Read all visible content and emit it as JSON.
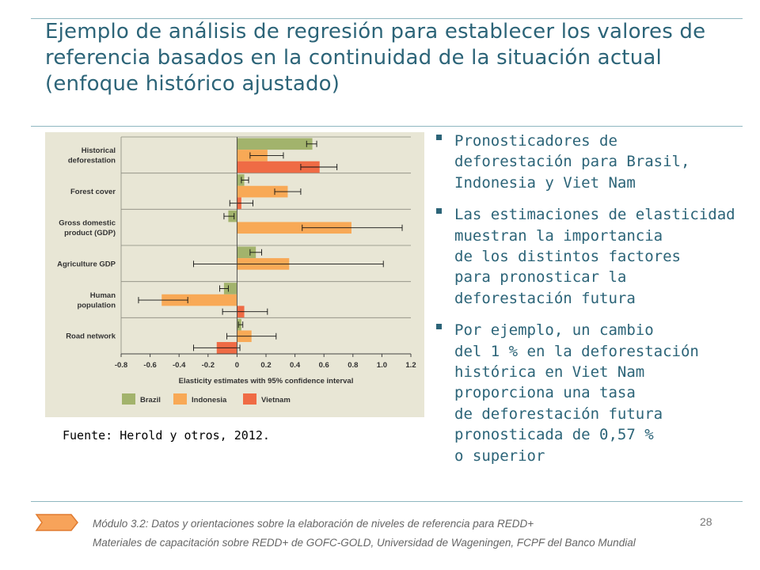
{
  "slide": {
    "title": "Ejemplo de análisis de regresión para establecer los valores de referencia basados en la continuidad de la situación actual (enfoque histórico ajustado)",
    "source": "Fuente: Herold y otros, 2012.",
    "bullets": [
      "Pronosticadores de\ndeforestación para Brasil,\nIndonesia y Viet Nam",
      "Las estimaciones de elasticidad\nmuestran la importancia\nde los distintos factores\npara pronosticar la\ndeforestación futura",
      "Por ejemplo, un cambio\ndel 1 % en la deforestación\nhistórica en Viet Nam\nproporciona una tasa\nde deforestación futura\npronosticada de 0,57 %\no superior"
    ],
    "page_number": "28",
    "footer_line1": "Módulo 3.2: Datos y orientaciones sobre la elaboración de niveles de referencia para REDD+",
    "footer_line2": "Materiales de capacitación sobre REDD+ de GOFC-GOLD,  Universidad de Wageningen, FCPF del Banco Mundial"
  },
  "colors": {
    "title": "#2c6478",
    "chart_bg": "#e8e6d5",
    "Brazil": "#a2b36c",
    "Indonesia": "#f8a956",
    "Vietnam": "#ef6b45"
  },
  "chart_data": {
    "type": "bar",
    "orientation": "horizontal",
    "xlabel": "Elasticity estimates with 95% confidence interval",
    "xlim": [
      -0.8,
      1.2
    ],
    "xticks": [
      "-0.8",
      "-0.6",
      "-0.4",
      "-0.2",
      "0",
      "0.2",
      "0.4",
      "0.6",
      "0.8",
      "1.0",
      "1.2"
    ],
    "legend_position": "bottom",
    "categories": [
      [
        "Historical",
        "deforestation"
      ],
      [
        "Forest cover"
      ],
      [
        "Gross domestic",
        "product (GDP)"
      ],
      [
        "Agriculture GDP"
      ],
      [
        "Human",
        "population"
      ],
      [
        "Road network"
      ]
    ],
    "series": [
      {
        "name": "Brazil",
        "values": [
          0.52,
          0.05,
          -0.06,
          0.13,
          -0.09,
          0.03
        ],
        "ci": [
          [
            0.48,
            0.55
          ],
          [
            0.03,
            0.08
          ],
          [
            -0.09,
            -0.02
          ],
          [
            0.09,
            0.17
          ],
          [
            -0.12,
            -0.06
          ],
          [
            0.01,
            0.04
          ]
        ]
      },
      {
        "name": "Indonesia",
        "values": [
          0.21,
          0.35,
          0.79,
          0.36,
          -0.52,
          0.1
        ],
        "ci": [
          [
            0.09,
            0.32
          ],
          [
            0.26,
            0.44
          ],
          [
            0.45,
            1.14
          ],
          [
            -0.3,
            1.01
          ],
          [
            -0.68,
            -0.34
          ],
          [
            -0.07,
            0.27
          ]
        ]
      },
      {
        "name": "Vietnam",
        "values": [
          0.57,
          0.03,
          null,
          null,
          0.05,
          -0.14
        ],
        "ci": [
          [
            0.44,
            0.69
          ],
          [
            -0.05,
            0.11
          ],
          null,
          null,
          [
            -0.1,
            0.21
          ],
          [
            -0.3,
            0.02
          ]
        ]
      }
    ]
  }
}
